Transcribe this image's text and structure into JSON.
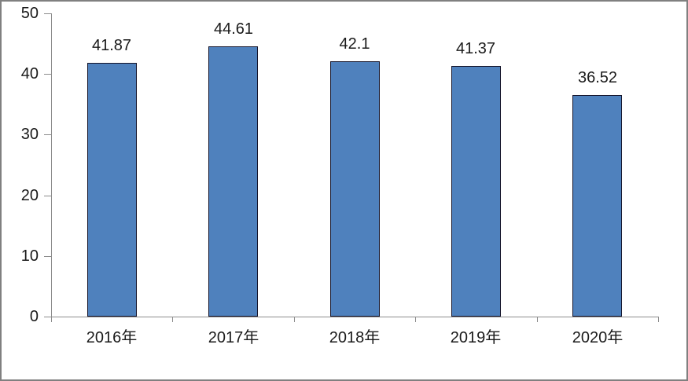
{
  "chart_data": {
    "type": "bar",
    "title": "",
    "xlabel": "",
    "ylabel": "",
    "categories": [
      "2016年",
      "2017年",
      "2018年",
      "2019年",
      "2020年"
    ],
    "values": [
      41.87,
      44.61,
      42.1,
      41.37,
      36.52
    ],
    "data_labels": [
      "41.87",
      "44.61",
      "42.1",
      "41.37",
      "36.52"
    ],
    "ylim": [
      0,
      50
    ],
    "yticks": [
      0,
      10,
      20,
      30,
      40,
      50
    ],
    "grid": false,
    "legend": false,
    "colors": {
      "bar_fill": "#4F81BD",
      "bar_border": "#14142a",
      "axis": "#8C8C8C",
      "text": "#1a1a1a",
      "frame_border": "#808080",
      "background": "#ffffff"
    }
  }
}
